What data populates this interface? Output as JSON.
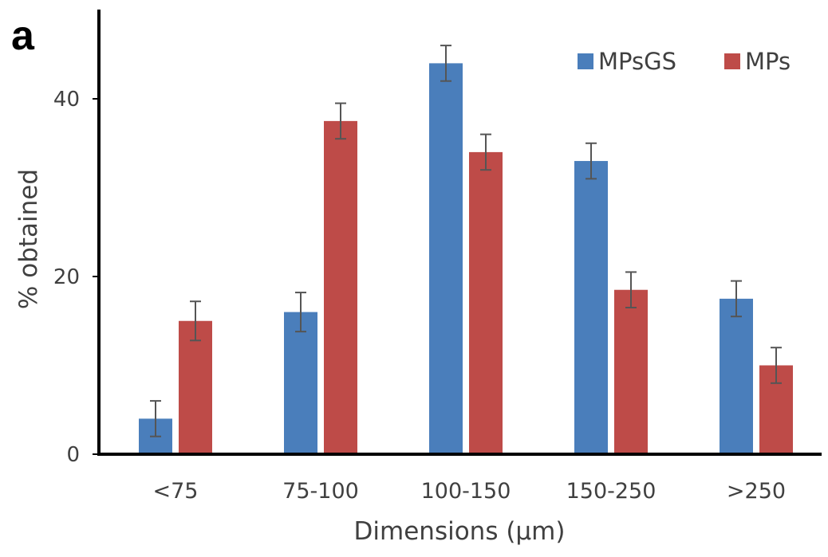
{
  "chart_data": {
    "type": "bar",
    "panel_label": "a",
    "title": "",
    "xlabel": "Dimensions (μm)",
    "ylabel": "% obtained",
    "categories": [
      "<75",
      "75-100",
      "100-150",
      "150-250",
      ">250"
    ],
    "series": [
      {
        "name": "MPsGS",
        "color": "#4a7ebb",
        "values": [
          4,
          16,
          44,
          33,
          17.5
        ],
        "errors": [
          2,
          2.2,
          2,
          2,
          2
        ]
      },
      {
        "name": "MPs",
        "color": "#be4b48",
        "values": [
          15,
          37.5,
          34,
          18.5,
          10
        ],
        "errors": [
          2.2,
          2,
          2,
          2,
          2
        ]
      }
    ],
    "ylim": [
      0,
      50
    ],
    "yticks": [
      0,
      20,
      40
    ],
    "grid": false,
    "legend": "top-right"
  }
}
